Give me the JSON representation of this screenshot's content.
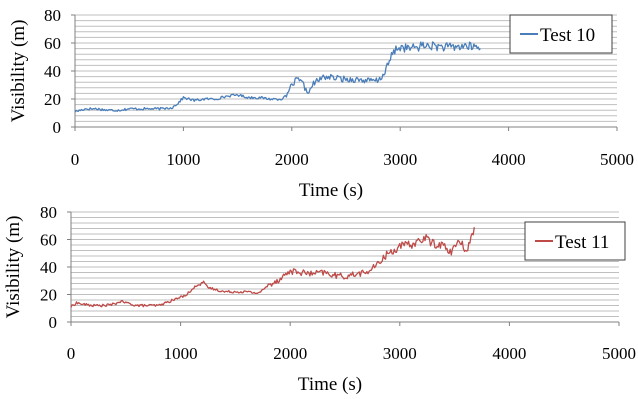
{
  "chart_data": [
    {
      "type": "line",
      "title": "",
      "xlabel": "Time  (s)",
      "ylabel": "Visibility  (m)",
      "xlim": [
        0,
        5000
      ],
      "ylim": [
        0,
        80
      ],
      "x_ticks": [
        "0",
        "1000",
        "2000",
        "3000",
        "4000",
        "5000"
      ],
      "y_ticks": [
        "0",
        "20",
        "40",
        "60",
        "80"
      ],
      "grid": "horizontal, every 4 m",
      "legend_position": "top-right",
      "color": "#4a7ebb",
      "series": [
        {
          "name": "Test 10",
          "points": [
            [
              0,
              11
            ],
            [
              100,
              13
            ],
            [
              200,
              13
            ],
            [
              300,
              12
            ],
            [
              400,
              12
            ],
            [
              500,
              13
            ],
            [
              600,
              13
            ],
            [
              700,
              13
            ],
            [
              800,
              13
            ],
            [
              900,
              14
            ],
            [
              950,
              17
            ],
            [
              1000,
              21
            ],
            [
              1100,
              19
            ],
            [
              1200,
              20
            ],
            [
              1300,
              20
            ],
            [
              1400,
              22
            ],
            [
              1500,
              23
            ],
            [
              1600,
              21
            ],
            [
              1700,
              21
            ],
            [
              1800,
              20
            ],
            [
              1900,
              20
            ],
            [
              1950,
              22
            ],
            [
              2000,
              30
            ],
            [
              2050,
              34
            ],
            [
              2100,
              31
            ],
            [
              2150,
              24
            ],
            [
              2200,
              31
            ],
            [
              2300,
              36
            ],
            [
              2400,
              35
            ],
            [
              2500,
              34
            ],
            [
              2600,
              34
            ],
            [
              2700,
              33
            ],
            [
              2800,
              33
            ],
            [
              2850,
              38
            ],
            [
              2900,
              47
            ],
            [
              2950,
              55
            ],
            [
              3000,
              57
            ],
            [
              3100,
              56
            ],
            [
              3200,
              58
            ],
            [
              3300,
              58
            ],
            [
              3400,
              57
            ],
            [
              3500,
              57
            ],
            [
              3600,
              58
            ],
            [
              3700,
              57
            ],
            [
              3740,
              56
            ]
          ]
        }
      ]
    },
    {
      "type": "line",
      "title": "",
      "xlabel": "Time  (s)",
      "ylabel": "Visibility  (m)",
      "xlim": [
        0,
        5000
      ],
      "ylim": [
        0,
        80
      ],
      "x_ticks": [
        "0",
        "1000",
        "2000",
        "3000",
        "4000",
        "5000"
      ],
      "y_ticks": [
        "0",
        "20",
        "40",
        "60",
        "80"
      ],
      "grid": "horizontal, every 4 m",
      "legend_position": "top-right",
      "color": "#be4b48",
      "series": [
        {
          "name": "Test 11",
          "points": [
            [
              0,
              11
            ],
            [
              50,
              14
            ],
            [
              100,
              13
            ],
            [
              200,
              12
            ],
            [
              300,
              12
            ],
            [
              400,
              13
            ],
            [
              450,
              15
            ],
            [
              500,
              14
            ],
            [
              600,
              12
            ],
            [
              700,
              12
            ],
            [
              800,
              12
            ],
            [
              900,
              15
            ],
            [
              1000,
              18
            ],
            [
              1050,
              20
            ],
            [
              1100,
              23
            ],
            [
              1150,
              27
            ],
            [
              1200,
              29
            ],
            [
              1250,
              25
            ],
            [
              1300,
              24
            ],
            [
              1400,
              22
            ],
            [
              1500,
              22
            ],
            [
              1600,
              22
            ],
            [
              1700,
              21
            ],
            [
              1750,
              23
            ],
            [
              1800,
              27
            ],
            [
              1900,
              31
            ],
            [
              2000,
              37
            ],
            [
              2100,
              36
            ],
            [
              2200,
              35
            ],
            [
              2300,
              36
            ],
            [
              2400,
              34
            ],
            [
              2500,
              33
            ],
            [
              2600,
              35
            ],
            [
              2700,
              36
            ],
            [
              2800,
              42
            ],
            [
              2850,
              47
            ],
            [
              2900,
              50
            ],
            [
              3000,
              55
            ],
            [
              3100,
              56
            ],
            [
              3200,
              60
            ],
            [
              3250,
              61
            ],
            [
              3300,
              57
            ],
            [
              3400,
              56
            ],
            [
              3450,
              50
            ],
            [
              3500,
              55
            ],
            [
              3550,
              58
            ],
            [
              3600,
              52
            ],
            [
              3650,
              60
            ],
            [
              3680,
              69
            ]
          ]
        }
      ]
    }
  ]
}
